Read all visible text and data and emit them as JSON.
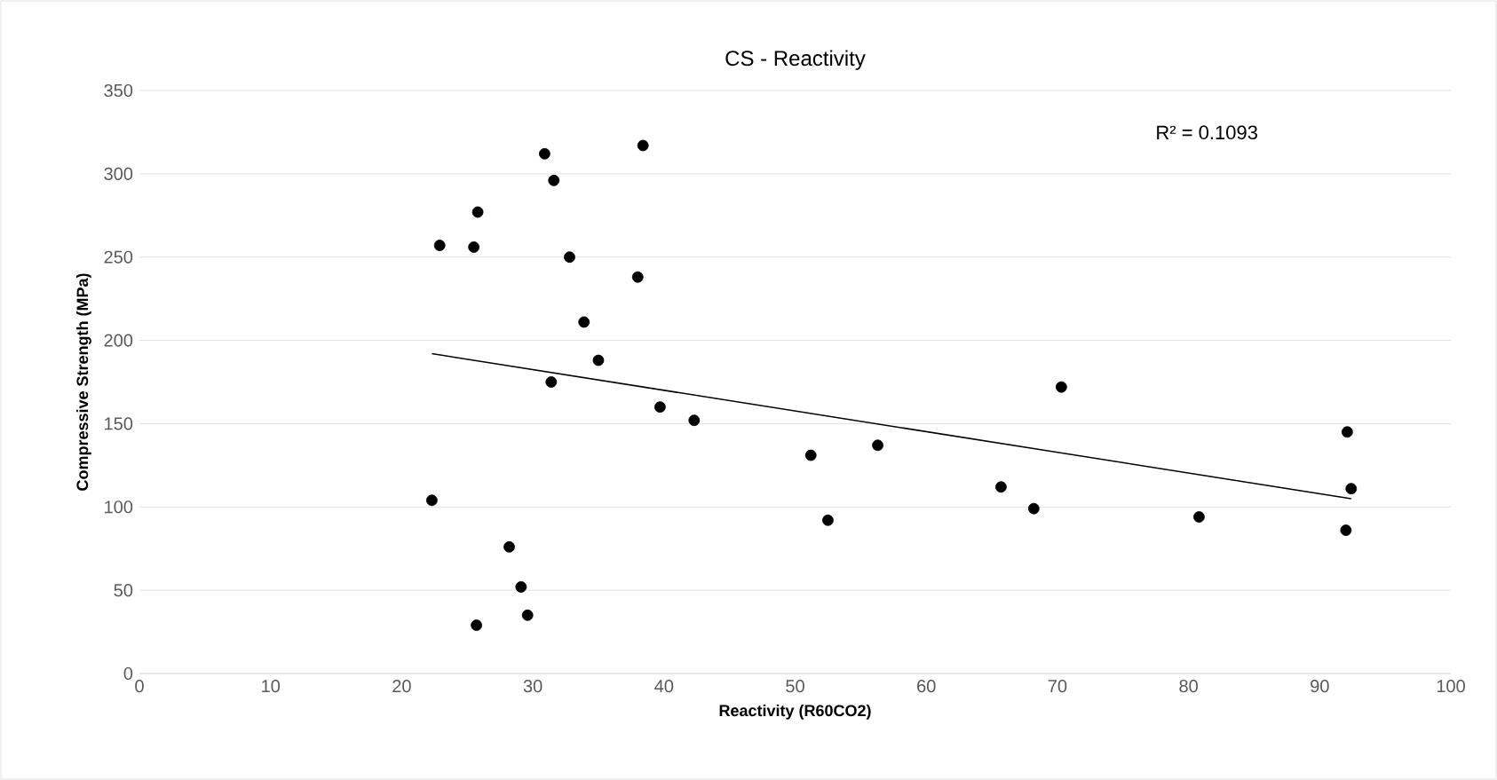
{
  "chart_data": {
    "type": "scatter",
    "title": "CS - Reactivity",
    "xlabel": "Reactivity (R60CO2)",
    "ylabel": "Compressive Strength (MPa)",
    "xlim": [
      0,
      100
    ],
    "xticks": [
      0,
      10,
      20,
      30,
      40,
      50,
      60,
      70,
      80,
      90,
      100
    ],
    "ylim": [
      0,
      350
    ],
    "yticks": [
      0,
      50,
      100,
      150,
      200,
      250,
      300,
      350
    ],
    "grid": "y",
    "marker": "circle",
    "annotations": [
      "R² = 0.1093"
    ],
    "series": [
      {
        "color": "#000000",
        "x": [
          22.3,
          22.9,
          25.5,
          25.8,
          25.7,
          28.2,
          29.1,
          29.6,
          30.9,
          31.6,
          31.4,
          32.8,
          33.9,
          35.0,
          38.0,
          38.4,
          39.7,
          42.3,
          51.2,
          52.5,
          56.3,
          65.7,
          68.2,
          70.3,
          80.8,
          92.1,
          92.0,
          92.4
        ],
        "values": [
          104,
          257,
          256,
          277,
          29,
          76,
          52,
          35,
          312,
          296,
          175,
          250,
          211,
          188,
          238,
          317,
          160,
          152,
          131,
          92,
          137,
          112,
          99,
          172,
          94,
          145,
          86,
          111
        ]
      },
      {
        "type": "line",
        "color": "#000000",
        "marker": "none",
        "x": [
          22.3,
          92.4
        ],
        "values": [
          192,
          105
        ]
      }
    ]
  }
}
